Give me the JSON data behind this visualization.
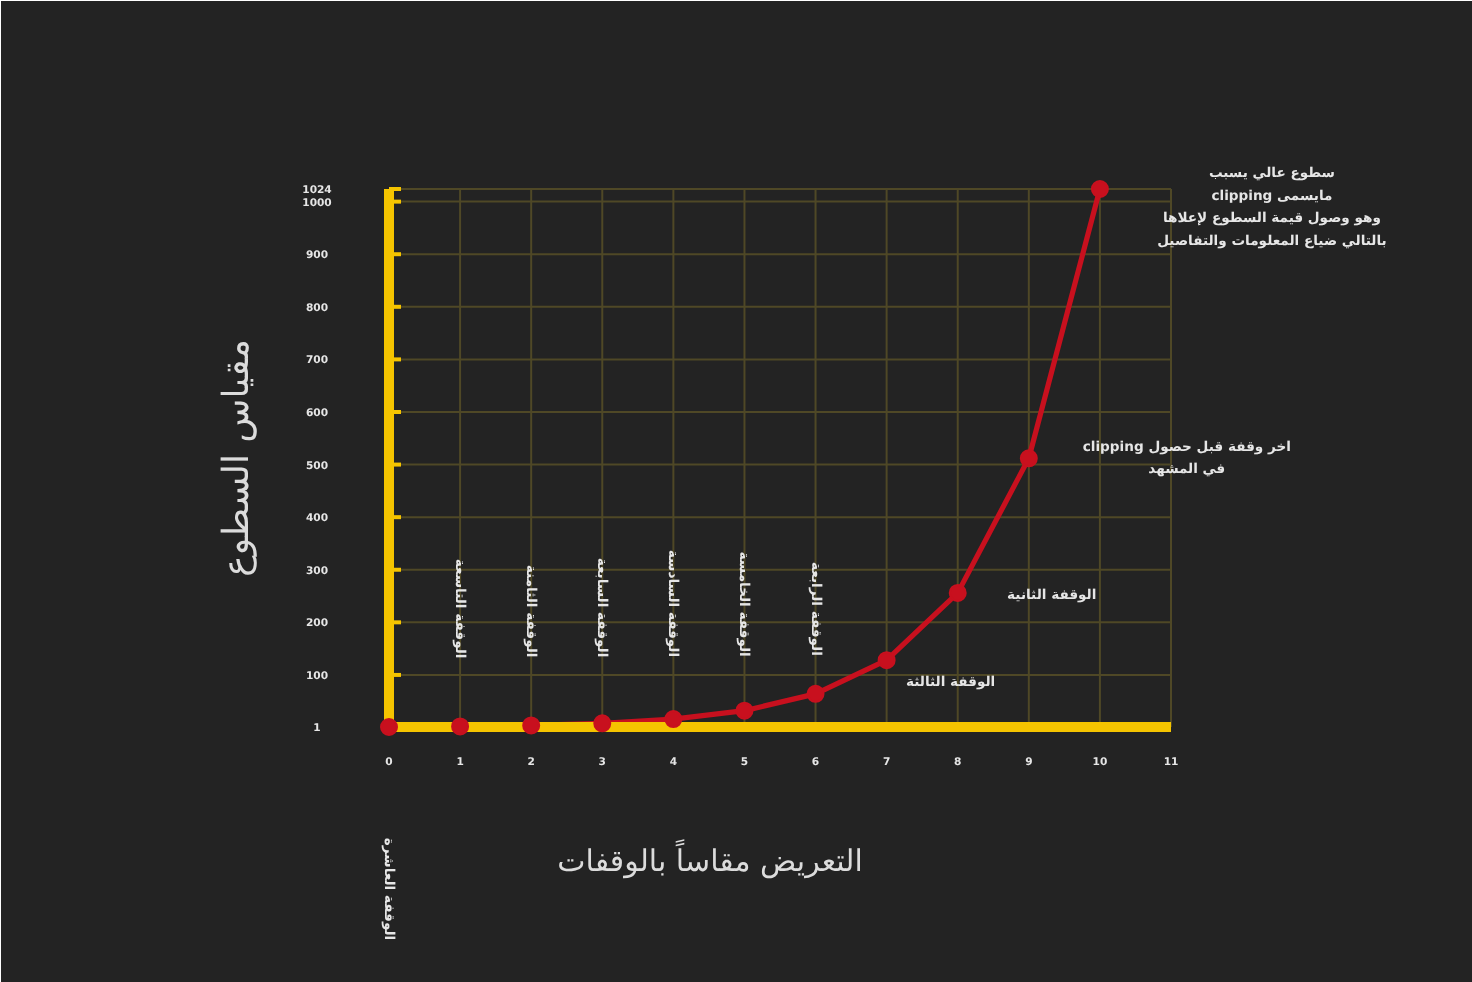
{
  "chart_data": {
    "type": "line",
    "xlabel": "التعريض مقاساً بالوقفات",
    "ylabel": "مقياس السطوع",
    "x": [
      0,
      1,
      2,
      3,
      4,
      5,
      6,
      7,
      8,
      9,
      10
    ],
    "values": [
      1,
      2,
      4,
      8,
      16,
      32,
      64,
      128,
      256,
      512,
      1024
    ],
    "color": "#c8101e",
    "marker": "circle",
    "line_style": "solid",
    "xlim": [
      0,
      11
    ],
    "ylim": [
      1,
      1024
    ],
    "xticks": [
      0,
      1,
      2,
      3,
      4,
      5,
      6,
      7,
      8,
      9,
      10,
      11
    ],
    "yticks": [
      1,
      100,
      200,
      300,
      400,
      500,
      600,
      700,
      800,
      900,
      1000,
      1024
    ],
    "grid": true,
    "annotations": [
      "الوقفة العاشرة",
      "الوقفة التاسعة",
      "الوقفة الثامنة",
      "الوقفة السابعة",
      "الوقفة السادسة",
      "الوقفة الخامسة",
      "الوقفة الرابعة",
      {
        "text": "الوقفة الثالثة",
        "x": 7,
        "y": 128
      },
      "الوقفة الثانية",
      "اخر وقفة قبل حصول clipping\nفي المشهد",
      "سطوع عالي يسبب\nمايسمى clipping\nوهو وصول قيمة السطوع لإعلاها\nبالتالي ضياع المعلومات والتفاصيل"
    ]
  }
}
